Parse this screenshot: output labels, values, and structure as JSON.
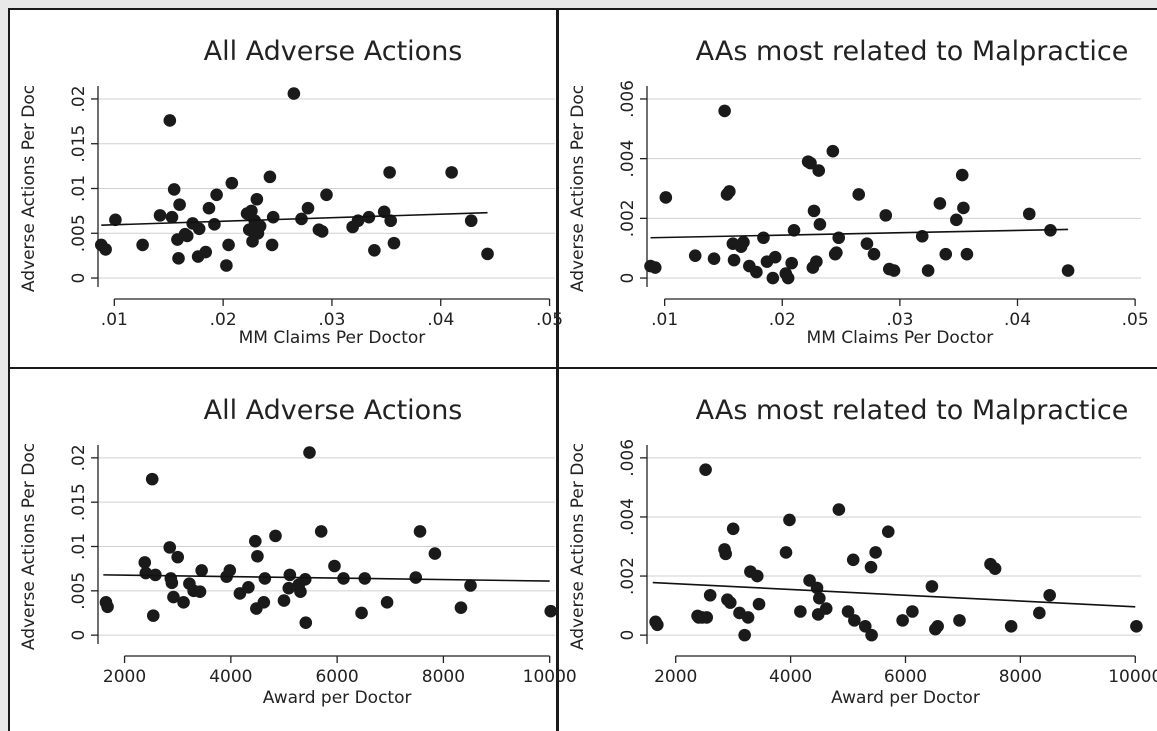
{
  "chart_data": [
    {
      "type": "scatter",
      "title": "All Adverse Actions",
      "xlabel": "MM Claims Per Doctor",
      "ylabel": "Adverse Actions Per Doc",
      "xlim": [
        0.0085,
        0.0505
      ],
      "ylim": [
        -0.001,
        0.021
      ],
      "xticks": [
        0.01,
        0.02,
        0.03,
        0.04,
        0.05
      ],
      "xtick_labels": [
        ".01",
        ".02",
        ".03",
        ".04",
        ".05"
      ],
      "yticks": [
        0,
        0.005,
        0.01,
        0.015,
        0.02
      ],
      "ytick_labels": [
        "0",
        ".005",
        ".01",
        ".015",
        ".02"
      ],
      "grid": true,
      "fit_line": [
        [
          0.0088,
          0.0059
        ],
        [
          0.0443,
          0.0073
        ]
      ],
      "points": [
        [
          0.0088,
          0.0037
        ],
        [
          0.0092,
          0.0032
        ],
        [
          0.0101,
          0.0065
        ],
        [
          0.0126,
          0.0037
        ],
        [
          0.0142,
          0.007
        ],
        [
          0.0151,
          0.0176
        ],
        [
          0.0153,
          0.0068
        ],
        [
          0.0155,
          0.0099
        ],
        [
          0.0158,
          0.0043
        ],
        [
          0.0159,
          0.0022
        ],
        [
          0.016,
          0.0082
        ],
        [
          0.0165,
          0.0049
        ],
        [
          0.0167,
          0.0047
        ],
        [
          0.0172,
          0.0061
        ],
        [
          0.0177,
          0.0024
        ],
        [
          0.0178,
          0.0055
        ],
        [
          0.0184,
          0.0029
        ],
        [
          0.0187,
          0.0078
        ],
        [
          0.0192,
          0.006
        ],
        [
          0.0194,
          0.0093
        ],
        [
          0.0203,
          0.0014
        ],
        [
          0.0205,
          0.0037
        ],
        [
          0.0208,
          0.0106
        ],
        [
          0.0222,
          0.0072
        ],
        [
          0.0224,
          0.0054
        ],
        [
          0.0226,
          0.0075
        ],
        [
          0.0227,
          0.0041
        ],
        [
          0.0229,
          0.0064
        ],
        [
          0.0231,
          0.0088
        ],
        [
          0.0232,
          0.005
        ],
        [
          0.0234,
          0.0058
        ],
        [
          0.0243,
          0.0113
        ],
        [
          0.0245,
          0.0037
        ],
        [
          0.0246,
          0.0068
        ],
        [
          0.0265,
          0.0206
        ],
        [
          0.0272,
          0.0066
        ],
        [
          0.0278,
          0.0078
        ],
        [
          0.0288,
          0.0054
        ],
        [
          0.0291,
          0.0052
        ],
        [
          0.0295,
          0.0093
        ],
        [
          0.0319,
          0.0057
        ],
        [
          0.0324,
          0.0064
        ],
        [
          0.0334,
          0.0068
        ],
        [
          0.0339,
          0.0031
        ],
        [
          0.0348,
          0.0074
        ],
        [
          0.0353,
          0.0118
        ],
        [
          0.0354,
          0.0064
        ],
        [
          0.0357,
          0.0039
        ],
        [
          0.041,
          0.0118
        ],
        [
          0.0428,
          0.0064
        ],
        [
          0.0443,
          0.0027
        ]
      ]
    },
    {
      "type": "scatter",
      "title": "AAs most related to Malpractice",
      "xlabel": "MM Claims Per Doctor",
      "ylabel": "Adverse Actions Per Doc",
      "xlim": [
        0.0085,
        0.0505
      ],
      "ylim": [
        -0.0003,
        0.0063
      ],
      "xticks": [
        0.01,
        0.02,
        0.03,
        0.04,
        0.05
      ],
      "xtick_labels": [
        ".01",
        ".02",
        ".03",
        ".04",
        ".05"
      ],
      "yticks": [
        0,
        0.002,
        0.004,
        0.006
      ],
      "ytick_labels": [
        "0",
        ".002",
        ".004",
        ".006"
      ],
      "grid": true,
      "fit_line": [
        [
          0.0088,
          0.00135
        ],
        [
          0.0443,
          0.00163
        ]
      ],
      "points": [
        [
          0.0088,
          0.0004
        ],
        [
          0.0092,
          0.00035
        ],
        [
          0.0101,
          0.0027
        ],
        [
          0.0126,
          0.00075
        ],
        [
          0.0142,
          0.00065
        ],
        [
          0.0151,
          0.0056
        ],
        [
          0.0153,
          0.0028
        ],
        [
          0.0155,
          0.0029
        ],
        [
          0.0158,
          0.00115
        ],
        [
          0.0159,
          0.0006
        ],
        [
          0.0165,
          0.00105
        ],
        [
          0.0167,
          0.0012
        ],
        [
          0.0172,
          0.0004
        ],
        [
          0.0178,
          0.0002
        ],
        [
          0.0184,
          0.00135
        ],
        [
          0.0187,
          0.00055
        ],
        [
          0.0192,
          0.0
        ],
        [
          0.0194,
          0.0007
        ],
        [
          0.0203,
          0.00015
        ],
        [
          0.0205,
          0.0
        ],
        [
          0.0208,
          0.0005
        ],
        [
          0.021,
          0.0016
        ],
        [
          0.0222,
          0.0039
        ],
        [
          0.0224,
          0.00385
        ],
        [
          0.0226,
          0.00035
        ],
        [
          0.0227,
          0.00225
        ],
        [
          0.0229,
          0.00055
        ],
        [
          0.0231,
          0.0036
        ],
        [
          0.0232,
          0.0018
        ],
        [
          0.0243,
          0.00425
        ],
        [
          0.0245,
          0.0008
        ],
        [
          0.0246,
          0.00085
        ],
        [
          0.0248,
          0.00135
        ],
        [
          0.0265,
          0.0028
        ],
        [
          0.0272,
          0.00115
        ],
        [
          0.0278,
          0.0008
        ],
        [
          0.0288,
          0.0021
        ],
        [
          0.0291,
          0.0003
        ],
        [
          0.0295,
          0.00025
        ],
        [
          0.0319,
          0.0014
        ],
        [
          0.0324,
          0.00025
        ],
        [
          0.0334,
          0.0025
        ],
        [
          0.0339,
          0.0008
        ],
        [
          0.0348,
          0.00195
        ],
        [
          0.0353,
          0.00345
        ],
        [
          0.0354,
          0.00235
        ],
        [
          0.0357,
          0.0008
        ],
        [
          0.041,
          0.00215
        ],
        [
          0.0428,
          0.0016
        ],
        [
          0.0443,
          0.00025
        ]
      ]
    },
    {
      "type": "scatter",
      "title": "All Adverse Actions",
      "xlabel": "Award per Doctor",
      "ylabel": "Adverse Actions Per Doc",
      "xlim": [
        1500,
        10100
      ],
      "ylim": [
        -0.001,
        0.021
      ],
      "xticks": [
        2000,
        4000,
        6000,
        8000,
        10000
      ],
      "xtick_labels": [
        "2000",
        "4000",
        "6000",
        "8000",
        "10000"
      ],
      "yticks": [
        0,
        0.005,
        0.01,
        0.015,
        0.02
      ],
      "ytick_labels": [
        "0",
        ".005",
        ".01",
        ".015",
        ".02"
      ],
      "grid": true,
      "fit_line": [
        [
          1600,
          0.0068
        ],
        [
          10000,
          0.0061
        ]
      ],
      "points": [
        [
          1650,
          0.0037
        ],
        [
          1680,
          0.0032
        ],
        [
          2380,
          0.0082
        ],
        [
          2400,
          0.007
        ],
        [
          2520,
          0.0176
        ],
        [
          2540,
          0.0022
        ],
        [
          2580,
          0.0068
        ],
        [
          2850,
          0.0099
        ],
        [
          2870,
          0.0064
        ],
        [
          2890,
          0.0059
        ],
        [
          2920,
          0.0043
        ],
        [
          3000,
          0.0088
        ],
        [
          3110,
          0.0037
        ],
        [
          3220,
          0.0058
        ],
        [
          3300,
          0.005
        ],
        [
          3420,
          0.0049
        ],
        [
          3450,
          0.0073
        ],
        [
          3920,
          0.0066
        ],
        [
          3980,
          0.0073
        ],
        [
          4170,
          0.0047
        ],
        [
          4330,
          0.0054
        ],
        [
          4460,
          0.0106
        ],
        [
          4480,
          0.003
        ],
        [
          4500,
          0.0089
        ],
        [
          4620,
          0.0037
        ],
        [
          4640,
          0.0064
        ],
        [
          4840,
          0.0112
        ],
        [
          5000,
          0.0039
        ],
        [
          5090,
          0.0053
        ],
        [
          5110,
          0.0068
        ],
        [
          5280,
          0.0057
        ],
        [
          5310,
          0.0049
        ],
        [
          5400,
          0.0063
        ],
        [
          5410,
          0.0014
        ],
        [
          5480,
          0.0206
        ],
        [
          5700,
          0.0117
        ],
        [
          5950,
          0.0078
        ],
        [
          6120,
          0.0064
        ],
        [
          6460,
          0.0025
        ],
        [
          6520,
          0.0064
        ],
        [
          6940,
          0.0037
        ],
        [
          7480,
          0.0065
        ],
        [
          7560,
          0.0117
        ],
        [
          7840,
          0.0092
        ],
        [
          8330,
          0.0031
        ],
        [
          8510,
          0.0056
        ],
        [
          10020,
          0.0027
        ]
      ]
    },
    {
      "type": "scatter",
      "title": "AAs most related to Malpractice",
      "xlabel": "Award per Doctor",
      "ylabel": "Adverse Actions Per Doc",
      "xlim": [
        1500,
        10100
      ],
      "ylim": [
        -0.0003,
        0.0063
      ],
      "xticks": [
        2000,
        4000,
        6000,
        8000,
        10000
      ],
      "xtick_labels": [
        "2000",
        "4000",
        "6000",
        "8000",
        "10000"
      ],
      "yticks": [
        0,
        0.002,
        0.004,
        0.006
      ],
      "ytick_labels": [
        "0",
        ".002",
        ".004",
        ".006"
      ],
      "grid": true,
      "fit_line": [
        [
          1600,
          0.00178
        ],
        [
          10000,
          0.00096
        ]
      ],
      "points": [
        [
          1650,
          0.00045
        ],
        [
          1680,
          0.00035
        ],
        [
          2380,
          0.00065
        ],
        [
          2400,
          0.0006
        ],
        [
          2460,
          0.0006
        ],
        [
          2520,
          0.0056
        ],
        [
          2540,
          0.0006
        ],
        [
          2600,
          0.00135
        ],
        [
          2850,
          0.0029
        ],
        [
          2870,
          0.00275
        ],
        [
          2900,
          0.0012
        ],
        [
          2950,
          0.0011
        ],
        [
          3000,
          0.0036
        ],
        [
          3110,
          0.00075
        ],
        [
          3200,
          0.0
        ],
        [
          3260,
          0.0006
        ],
        [
          3300,
          0.00215
        ],
        [
          3420,
          0.002
        ],
        [
          3450,
          0.00105
        ],
        [
          3920,
          0.0028
        ],
        [
          3980,
          0.0039
        ],
        [
          4170,
          0.0008
        ],
        [
          4330,
          0.00185
        ],
        [
          4460,
          0.0016
        ],
        [
          4480,
          0.0007
        ],
        [
          4500,
          0.00125
        ],
        [
          4620,
          0.0009
        ],
        [
          4840,
          0.00425
        ],
        [
          5000,
          0.0008
        ],
        [
          5090,
          0.00255
        ],
        [
          5110,
          0.0005
        ],
        [
          5300,
          0.0003
        ],
        [
          5400,
          0.0023
        ],
        [
          5410,
          0.0
        ],
        [
          5480,
          0.0028
        ],
        [
          5700,
          0.0035
        ],
        [
          5950,
          0.0005
        ],
        [
          6120,
          0.0008
        ],
        [
          6460,
          0.00165
        ],
        [
          6520,
          0.0002
        ],
        [
          6560,
          0.0003
        ],
        [
          6940,
          0.0005
        ],
        [
          7480,
          0.0024
        ],
        [
          7560,
          0.00225
        ],
        [
          7840,
          0.0003
        ],
        [
          8330,
          0.00075
        ],
        [
          8510,
          0.00135
        ],
        [
          10020,
          0.0003
        ]
      ]
    }
  ]
}
